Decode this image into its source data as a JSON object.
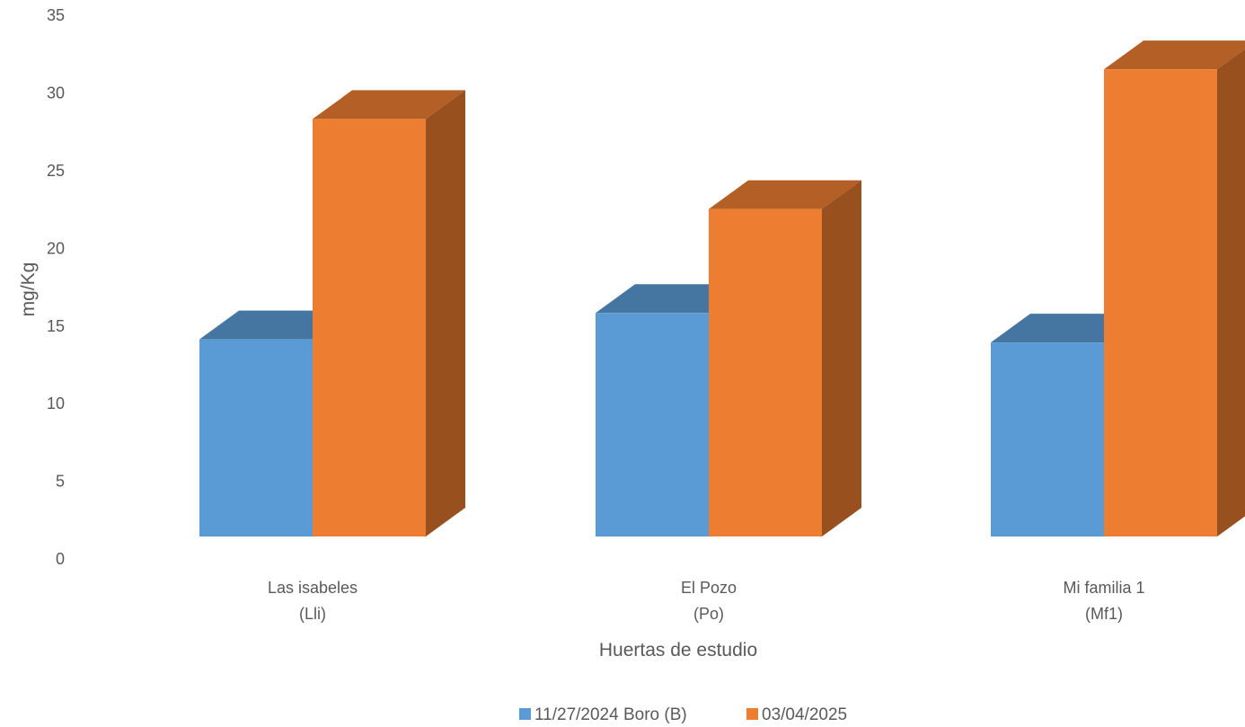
{
  "chart_data": {
    "type": "bar",
    "style": "3d-clustered-column",
    "title": "",
    "xlabel": "Huertas de estudio",
    "ylabel": "mg/Kg",
    "ylim": [
      0,
      35
    ],
    "yticks": [
      0,
      5,
      10,
      15,
      20,
      25,
      30,
      35
    ],
    "grid": false,
    "legend_position": "bottom",
    "categories": [
      [
        "Las isabeles",
        "(Lli)"
      ],
      [
        "El Pozo",
        "(Po)"
      ],
      [
        "Mi familia 1",
        "(Mf1)"
      ]
    ],
    "series": [
      {
        "name": "11/27/2024 Boro (B)",
        "values": [
          12.7,
          14.4,
          12.5
        ],
        "color": "#5B9BD5"
      },
      {
        "name": "03/04/2025",
        "values": [
          26.9,
          21.1,
          30.1
        ],
        "color": "#ED7D31"
      }
    ]
  }
}
